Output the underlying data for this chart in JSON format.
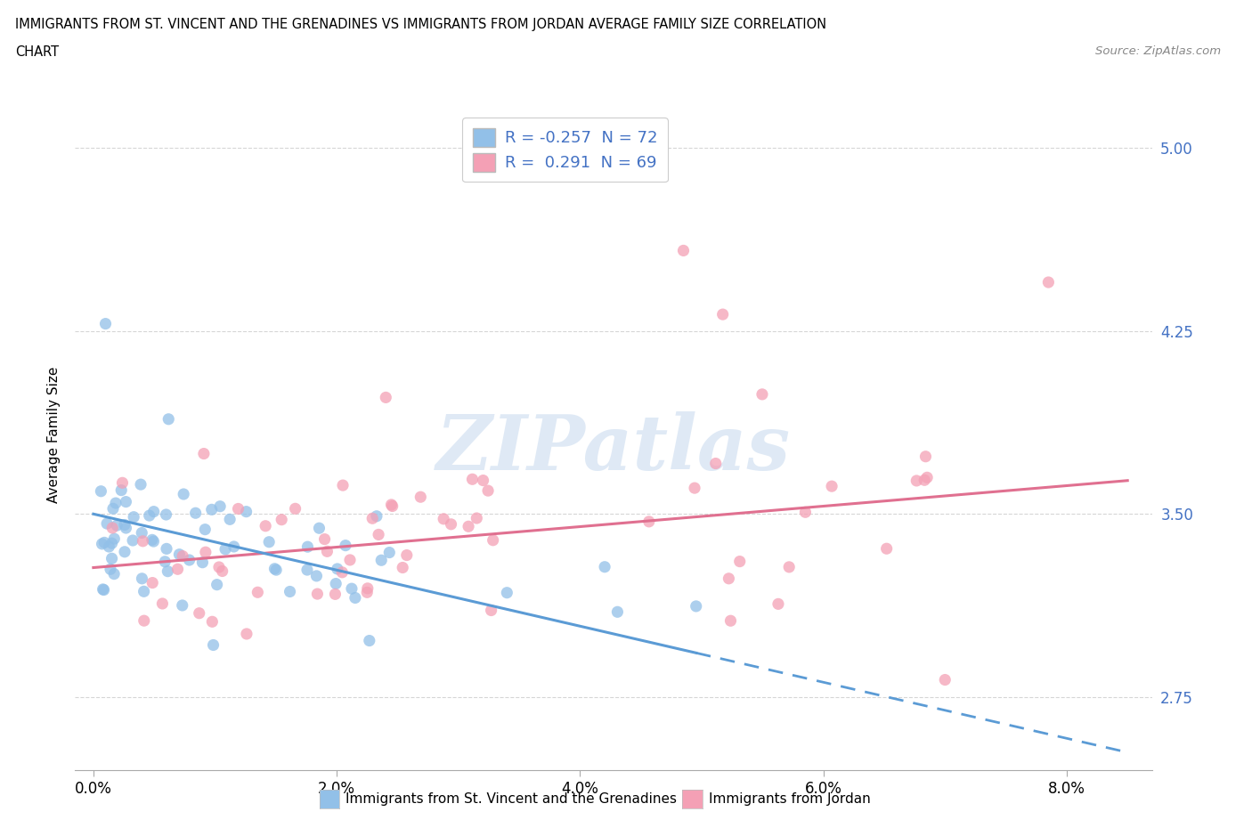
{
  "title_line1": "IMMIGRANTS FROM ST. VINCENT AND THE GRENADINES VS IMMIGRANTS FROM JORDAN AVERAGE FAMILY SIZE CORRELATION",
  "title_line2": "CHART",
  "source_text": "Source: ZipAtlas.com",
  "ylabel": "Average Family Size",
  "yticks": [
    2.75,
    3.5,
    4.25,
    5.0
  ],
  "ytick_labels": [
    "2.75",
    "3.50",
    "4.25",
    "5.00"
  ],
  "xticks": [
    0.0,
    2.0,
    4.0,
    6.0,
    8.0
  ],
  "xtick_labels": [
    "0.0%",
    "2.0%",
    "4.0%",
    "6.0%",
    "8.0%"
  ],
  "ylim": [
    2.45,
    5.2
  ],
  "xlim": [
    -0.15,
    8.7
  ],
  "legend_label1": "Immigrants from St. Vincent and the Grenadines",
  "legend_label2": "Immigrants from Jordan",
  "R1": -0.257,
  "N1": 72,
  "R2": 0.291,
  "N2": 69,
  "color_blue": "#92C0E8",
  "color_pink": "#F4A0B5",
  "trend_blue_color": "#5B9BD5",
  "trend_pink_color": "#E07090",
  "watermark": "ZIPatlas",
  "watermark_color": "#C5D8EE",
  "text_color_blue": "#4472C4",
  "grid_color": "#CCCCCC"
}
